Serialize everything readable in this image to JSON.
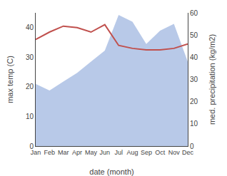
{
  "chart_data": {
    "type": "line",
    "xlabel": "date (month)",
    "ylabel": "max temp (C)",
    "y2label": "med. precipitation (kg/m2)",
    "categories": [
      "Jan",
      "Feb",
      "Mar",
      "Apr",
      "May",
      "Jun",
      "Jul",
      "Aug",
      "Sep",
      "Oct",
      "Nov",
      "Dec"
    ],
    "series": [
      {
        "type": "area",
        "axis": "y2",
        "color": "#b8c9e8",
        "values": [
          28,
          25,
          29,
          33,
          38,
          43,
          59,
          56,
          46,
          52,
          55,
          38
        ]
      },
      {
        "type": "line",
        "color": "#c0504d",
        "values": [
          36,
          38.5,
          40.5,
          40,
          38.5,
          41,
          34,
          33,
          32.5,
          32.5,
          33,
          34.5
        ]
      }
    ],
    "ylim": [
      0,
      45
    ],
    "yticks": [
      0,
      10,
      20,
      30,
      40
    ],
    "y2lim": [
      0,
      60
    ],
    "y2ticks": [
      0,
      10,
      20,
      30,
      40,
      50,
      60
    ],
    "grid": false
  }
}
